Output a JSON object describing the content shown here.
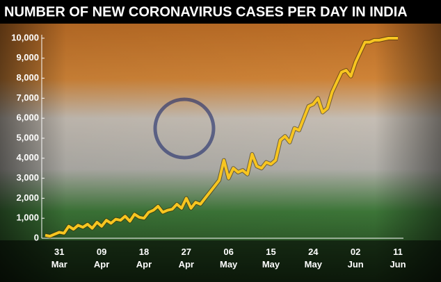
{
  "chart_data": {
    "type": "line",
    "title": "NUMBER OF NEW CORONAVIRUS CASES PER DAY IN INDIA",
    "categories": [
      null,
      null,
      null,
      "31 Mar",
      null,
      null,
      null,
      null,
      null,
      null,
      null,
      null,
      "09 Apr",
      null,
      null,
      null,
      null,
      null,
      null,
      null,
      null,
      "18 Apr",
      null,
      null,
      null,
      null,
      null,
      null,
      null,
      null,
      "27 Apr",
      null,
      null,
      null,
      null,
      null,
      null,
      null,
      null,
      "06 May",
      null,
      null,
      null,
      null,
      null,
      null,
      null,
      null,
      "15 May",
      null,
      null,
      null,
      null,
      null,
      null,
      null,
      null,
      "24 May",
      null,
      null,
      null,
      null,
      null,
      null,
      null,
      null,
      "02 Jun",
      null,
      null,
      null,
      null,
      null,
      null,
      null,
      null,
      "11 Jun"
    ],
    "values": [
      150,
      100,
      200,
      300,
      250,
      600,
      450,
      650,
      550,
      700,
      500,
      800,
      600,
      900,
      750,
      950,
      900,
      1100,
      850,
      1200,
      1050,
      1000,
      1300,
      1400,
      1600,
      1300,
      1400,
      1450,
      1700,
      1500,
      2000,
      1500,
      1800,
      1700,
      2000,
      2300,
      2600,
      2900,
      3900,
      3000,
      3500,
      3300,
      3400,
      3200,
      4200,
      3600,
      3500,
      3800,
      3700,
      3900,
      4900,
      5100,
      4800,
      5500,
      5400,
      6000,
      6600,
      6700,
      7000,
      6300,
      6500,
      7300,
      7800,
      8300,
      8400,
      8100,
      8800,
      9300,
      9800,
      9800,
      9900,
      9900,
      9950,
      10000,
      10000,
      10000
    ],
    "color": "#f7c520",
    "ylim": [
      0,
      10000
    ],
    "yticks": [
      0,
      {
        "value": 1000,
        "label": "1,000"
      },
      {
        "value": 2000,
        "label": "2,000"
      },
      {
        "value": 3000,
        "label": "3,000"
      },
      {
        "value": 4000,
        "label": "4,000"
      },
      {
        "value": 5000,
        "label": "5,000"
      },
      {
        "value": 6000,
        "label": "6,000"
      },
      {
        "value": 7000,
        "label": "7,000"
      },
      {
        "value": 8000,
        "label": "8,000"
      },
      {
        "value": 9000,
        "label": "9,000"
      },
      {
        "value": 10000,
        "label": "10,000"
      }
    ],
    "grid": false
  }
}
